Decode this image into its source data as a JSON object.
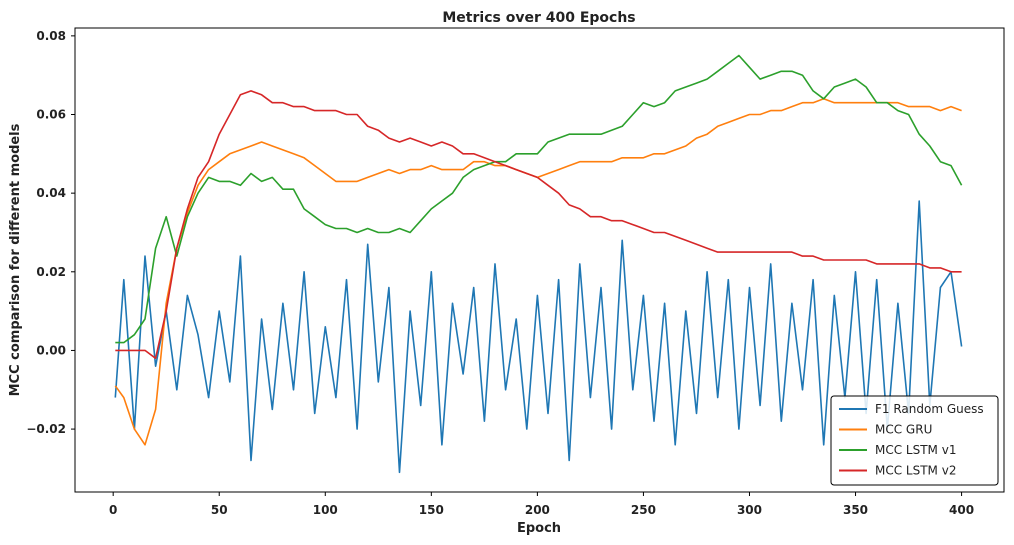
{
  "chart_data": {
    "type": "line",
    "title": "Metrics over 400 Epochs",
    "xlabel": "Epoch",
    "ylabel": "MCC comparison for different models",
    "xlim": [
      -18,
      420
    ],
    "ylim": [
      -0.036,
      0.082
    ],
    "xticks": [
      0,
      50,
      100,
      150,
      200,
      250,
      300,
      350,
      400
    ],
    "yticks": [
      -0.02,
      0.0,
      0.02,
      0.04,
      0.06,
      0.08
    ],
    "ytick_labels": [
      "−0.02",
      "0.00",
      "0.02",
      "0.04",
      "0.06",
      "0.08"
    ],
    "grid": false,
    "legend_position": "lower-right",
    "series": [
      {
        "name": "F1 Random Guess",
        "color": "#1f77b4",
        "x": [
          1,
          5,
          10,
          15,
          20,
          25,
          30,
          35,
          40,
          45,
          50,
          55,
          60,
          65,
          70,
          75,
          80,
          85,
          90,
          95,
          100,
          105,
          110,
          115,
          120,
          125,
          130,
          135,
          140,
          145,
          150,
          155,
          160,
          165,
          170,
          175,
          180,
          185,
          190,
          195,
          200,
          205,
          210,
          215,
          220,
          225,
          230,
          235,
          240,
          245,
          250,
          255,
          260,
          265,
          270,
          275,
          280,
          285,
          290,
          295,
          300,
          305,
          310,
          315,
          320,
          325,
          330,
          335,
          340,
          345,
          350,
          355,
          360,
          365,
          370,
          375,
          380,
          385,
          390,
          395,
          400
        ],
        "y": [
          -0.012,
          0.018,
          -0.02,
          0.024,
          -0.004,
          0.01,
          -0.01,
          0.014,
          0.004,
          -0.012,
          0.01,
          -0.008,
          0.024,
          -0.028,
          0.008,
          -0.015,
          0.012,
          -0.01,
          0.02,
          -0.016,
          0.006,
          -0.012,
          0.018,
          -0.02,
          0.027,
          -0.008,
          0.016,
          -0.031,
          0.01,
          -0.014,
          0.02,
          -0.024,
          0.012,
          -0.006,
          0.016,
          -0.018,
          0.022,
          -0.01,
          0.008,
          -0.02,
          0.014,
          -0.016,
          0.018,
          -0.028,
          0.022,
          -0.012,
          0.016,
          -0.02,
          0.028,
          -0.01,
          0.014,
          -0.018,
          0.012,
          -0.024,
          0.01,
          -0.016,
          0.02,
          -0.012,
          0.018,
          -0.02,
          0.016,
          -0.014,
          0.022,
          -0.018,
          0.012,
          -0.01,
          0.018,
          -0.024,
          0.014,
          -0.012,
          0.02,
          -0.016,
          0.018,
          -0.02,
          0.012,
          -0.016,
          0.038,
          -0.014,
          0.016,
          0.02,
          0.001
        ]
      },
      {
        "name": "MCC GRU",
        "color": "#ff7f0e",
        "x": [
          1,
          5,
          10,
          15,
          20,
          25,
          30,
          35,
          40,
          45,
          50,
          55,
          60,
          65,
          70,
          75,
          80,
          85,
          90,
          95,
          100,
          105,
          110,
          115,
          120,
          125,
          130,
          135,
          140,
          145,
          150,
          155,
          160,
          165,
          170,
          175,
          180,
          185,
          190,
          195,
          200,
          205,
          210,
          215,
          220,
          225,
          230,
          235,
          240,
          245,
          250,
          255,
          260,
          265,
          270,
          275,
          280,
          285,
          290,
          295,
          300,
          305,
          310,
          315,
          320,
          325,
          330,
          335,
          340,
          345,
          350,
          355,
          360,
          365,
          370,
          375,
          380,
          385,
          390,
          395,
          400
        ],
        "y": [
          -0.009,
          -0.012,
          -0.02,
          -0.024,
          -0.015,
          0.012,
          0.026,
          0.035,
          0.042,
          0.046,
          0.048,
          0.05,
          0.051,
          0.052,
          0.053,
          0.052,
          0.051,
          0.05,
          0.049,
          0.047,
          0.045,
          0.043,
          0.043,
          0.043,
          0.044,
          0.045,
          0.046,
          0.045,
          0.046,
          0.046,
          0.047,
          0.046,
          0.046,
          0.046,
          0.048,
          0.048,
          0.047,
          0.047,
          0.046,
          0.045,
          0.044,
          0.045,
          0.046,
          0.047,
          0.048,
          0.048,
          0.048,
          0.048,
          0.049,
          0.049,
          0.049,
          0.05,
          0.05,
          0.051,
          0.052,
          0.054,
          0.055,
          0.057,
          0.058,
          0.059,
          0.06,
          0.06,
          0.061,
          0.061,
          0.062,
          0.063,
          0.063,
          0.064,
          0.063,
          0.063,
          0.063,
          0.063,
          0.063,
          0.063,
          0.063,
          0.062,
          0.062,
          0.062,
          0.061,
          0.062,
          0.061
        ]
      },
      {
        "name": "MCC LSTM v1",
        "color": "#2ca02c",
        "x": [
          1,
          5,
          10,
          15,
          20,
          25,
          30,
          35,
          40,
          45,
          50,
          55,
          60,
          65,
          70,
          75,
          80,
          85,
          90,
          95,
          100,
          105,
          110,
          115,
          120,
          125,
          130,
          135,
          140,
          145,
          150,
          155,
          160,
          165,
          170,
          175,
          180,
          185,
          190,
          195,
          200,
          205,
          210,
          215,
          220,
          225,
          230,
          235,
          240,
          245,
          250,
          255,
          260,
          265,
          270,
          275,
          280,
          285,
          290,
          295,
          300,
          305,
          310,
          315,
          320,
          325,
          330,
          335,
          340,
          345,
          350,
          355,
          360,
          365,
          370,
          375,
          380,
          385,
          390,
          395,
          400
        ],
        "y": [
          0.002,
          0.002,
          0.004,
          0.008,
          0.026,
          0.034,
          0.024,
          0.034,
          0.04,
          0.044,
          0.043,
          0.043,
          0.042,
          0.045,
          0.043,
          0.044,
          0.041,
          0.041,
          0.036,
          0.034,
          0.032,
          0.031,
          0.031,
          0.03,
          0.031,
          0.03,
          0.03,
          0.031,
          0.03,
          0.033,
          0.036,
          0.038,
          0.04,
          0.044,
          0.046,
          0.047,
          0.048,
          0.048,
          0.05,
          0.05,
          0.05,
          0.053,
          0.054,
          0.055,
          0.055,
          0.055,
          0.055,
          0.056,
          0.057,
          0.06,
          0.063,
          0.062,
          0.063,
          0.066,
          0.067,
          0.068,
          0.069,
          0.071,
          0.073,
          0.075,
          0.072,
          0.069,
          0.07,
          0.071,
          0.071,
          0.07,
          0.066,
          0.064,
          0.067,
          0.068,
          0.069,
          0.067,
          0.063,
          0.063,
          0.061,
          0.06,
          0.055,
          0.052,
          0.048,
          0.047,
          0.042
        ]
      },
      {
        "name": "MCC LSTM v2",
        "color": "#d62728",
        "x": [
          1,
          5,
          10,
          15,
          20,
          25,
          30,
          35,
          40,
          45,
          50,
          55,
          60,
          65,
          70,
          75,
          80,
          85,
          90,
          95,
          100,
          105,
          110,
          115,
          120,
          125,
          130,
          135,
          140,
          145,
          150,
          155,
          160,
          165,
          170,
          175,
          180,
          185,
          190,
          195,
          200,
          205,
          210,
          215,
          220,
          225,
          230,
          235,
          240,
          245,
          250,
          255,
          260,
          265,
          270,
          275,
          280,
          285,
          290,
          295,
          300,
          305,
          310,
          315,
          320,
          325,
          330,
          335,
          340,
          345,
          350,
          355,
          360,
          365,
          370,
          375,
          380,
          385,
          390,
          395,
          400
        ],
        "y": [
          0.0,
          0.0,
          0.0,
          0.0,
          -0.002,
          0.01,
          0.026,
          0.036,
          0.044,
          0.048,
          0.055,
          0.06,
          0.065,
          0.066,
          0.065,
          0.063,
          0.063,
          0.062,
          0.062,
          0.061,
          0.061,
          0.061,
          0.06,
          0.06,
          0.057,
          0.056,
          0.054,
          0.053,
          0.054,
          0.053,
          0.052,
          0.053,
          0.052,
          0.05,
          0.05,
          0.049,
          0.048,
          0.047,
          0.046,
          0.045,
          0.044,
          0.042,
          0.04,
          0.037,
          0.036,
          0.034,
          0.034,
          0.033,
          0.033,
          0.032,
          0.031,
          0.03,
          0.03,
          0.029,
          0.028,
          0.027,
          0.026,
          0.025,
          0.025,
          0.025,
          0.025,
          0.025,
          0.025,
          0.025,
          0.025,
          0.024,
          0.024,
          0.023,
          0.023,
          0.023,
          0.023,
          0.023,
          0.022,
          0.022,
          0.022,
          0.022,
          0.022,
          0.021,
          0.021,
          0.02,
          0.02
        ]
      }
    ]
  }
}
